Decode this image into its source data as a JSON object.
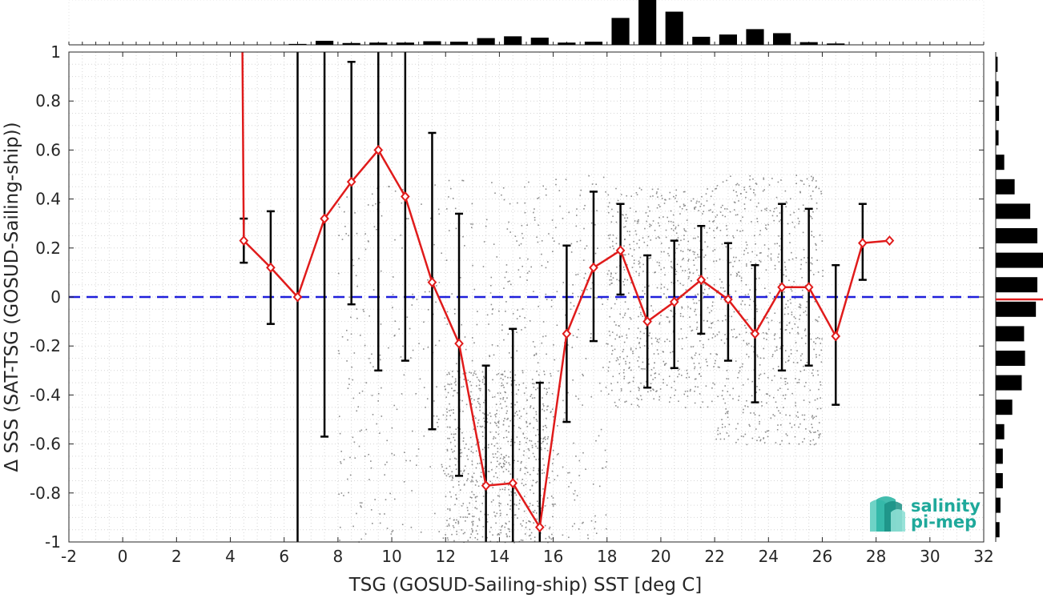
{
  "chart_data": {
    "type": "scatter",
    "xlabel": "TSG (GOSUD-Sailing-ship) SST [deg C]",
    "ylabel": "Δ SSS (SAT-TSG (GOSUD-Sailing-ship))",
    "xlim": [
      -2,
      32
    ],
    "ylim": [
      -1,
      1
    ],
    "xticks": [
      -2,
      0,
      2,
      4,
      6,
      8,
      10,
      12,
      14,
      16,
      18,
      20,
      22,
      24,
      26,
      28,
      30,
      32
    ],
    "yticks": [
      -1,
      -0.8,
      -0.6,
      -0.4,
      -0.2,
      0,
      0.2,
      0.4,
      0.6,
      0.8,
      1
    ],
    "grid": true,
    "reference_line": {
      "y": 0,
      "color": "#1f1fdb",
      "style": "dashed"
    },
    "binned_mean": {
      "color": "#e01b1b",
      "x": [
        4.5,
        5.5,
        6.5,
        7.5,
        8.5,
        9.5,
        10.5,
        11.5,
        12.5,
        13.5,
        14.5,
        15.5,
        16.5,
        17.5,
        18.5,
        19.5,
        20.5,
        21.5,
        22.5,
        23.5,
        24.5,
        25.5,
        26.5,
        27.5,
        28.5
      ],
      "y": [
        0.23,
        0.12,
        0.0,
        0.32,
        0.47,
        0.6,
        0.41,
        0.06,
        -0.19,
        -0.77,
        -0.76,
        -0.94,
        -0.15,
        0.12,
        0.19,
        -0.1,
        -0.02,
        0.07,
        -0.01,
        -0.15,
        0.04,
        0.04,
        -0.16,
        0.22,
        0.23
      ],
      "lead_in": {
        "x": [
          4.45,
          4.5
        ],
        "y": [
          1.0,
          0.23
        ]
      }
    },
    "error_bars": {
      "color": "#000000",
      "lower": [
        0.14,
        -0.11,
        -1.0,
        -0.57,
        -0.03,
        -0.3,
        -0.26,
        -0.54,
        -0.73,
        -1.0,
        -1.0,
        -1.0,
        -0.51,
        -0.18,
        0.01,
        -0.37,
        -0.29,
        -0.15,
        -0.26,
        -0.43,
        -0.3,
        -0.28,
        -0.44,
        0.07,
        null
      ],
      "upper": [
        0.32,
        0.35,
        1.0,
        1.0,
        0.96,
        1.0,
        1.0,
        0.67,
        0.34,
        -0.28,
        -0.13,
        -0.35,
        0.21,
        0.43,
        0.38,
        0.17,
        0.23,
        0.29,
        0.22,
        0.13,
        0.38,
        0.36,
        0.13,
        0.38,
        null
      ]
    },
    "scatter_color": "#8c8c8c",
    "scatter_clusters": [
      {
        "x": [
          8,
          18
        ],
        "y": [
          -1,
          0.5
        ]
      },
      {
        "x": [
          18,
          22
        ],
        "y": [
          -0.45,
          0.45
        ]
      },
      {
        "x": [
          22,
          26
        ],
        "y": [
          -0.6,
          0.5
        ]
      },
      {
        "x": [
          12,
          16
        ],
        "y": [
          -1,
          -0.3
        ]
      }
    ],
    "top_histogram": {
      "bins": [
        6.5,
        7.5,
        8.5,
        9.5,
        10.5,
        11.5,
        12.5,
        13.5,
        14.5,
        15.5,
        16.5,
        17.5,
        18.5,
        19.5,
        20.5,
        21.5,
        22.5,
        23.5,
        24.5,
        25.5,
        26.5
      ],
      "counts": [
        0.02,
        0.09,
        0.04,
        0.05,
        0.05,
        0.08,
        0.07,
        0.15,
        0.19,
        0.16,
        0.05,
        0.07,
        0.6,
        1.0,
        0.74,
        0.18,
        0.23,
        0.35,
        0.26,
        0.06,
        0.03
      ]
    },
    "right_histogram": {
      "bins": [
        0.95,
        0.85,
        0.75,
        0.65,
        0.55,
        0.45,
        0.35,
        0.25,
        0.15,
        0.05,
        -0.05,
        -0.15,
        -0.25,
        -0.35,
        -0.45,
        -0.55,
        -0.65,
        -0.75,
        -0.85,
        -0.95
      ],
      "counts": [
        0.04,
        0.06,
        0.07,
        0.06,
        0.18,
        0.4,
        0.73,
        0.88,
        1.0,
        0.88,
        0.85,
        0.6,
        0.62,
        0.55,
        0.35,
        0.18,
        0.15,
        0.15,
        0.1,
        0.08
      ],
      "mean_marker": -0.01
    }
  },
  "logo": {
    "line1": "salinity",
    "line2": "pi-mep"
  }
}
